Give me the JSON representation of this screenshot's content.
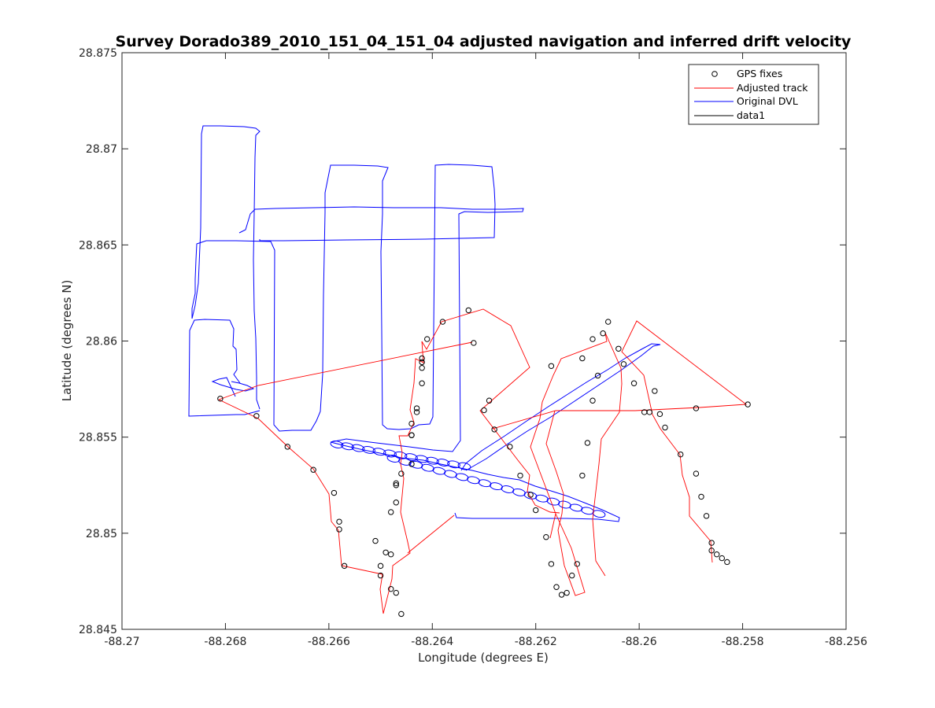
{
  "chart_data": {
    "type": "line",
    "title": "Survey Dorado389_2010_151_04_151_04 adjusted navigation and inferred drift velocity",
    "xlabel": "Longitude (degrees E)",
    "ylabel": "Latitude (degrees N)",
    "xlim": [
      -88.27,
      -88.256
    ],
    "ylim": [
      28.845,
      28.875
    ],
    "xticks": [
      -88.27,
      -88.268,
      -88.266,
      -88.264,
      -88.262,
      -88.26,
      -88.258,
      -88.256
    ],
    "xtick_labels": [
      "-88.27",
      "-88.268",
      "-88.266",
      "-88.264",
      "-88.262",
      "-88.26",
      "-88.258",
      "-88.256"
    ],
    "yticks": [
      28.845,
      28.85,
      28.855,
      28.86,
      28.865,
      28.87,
      28.875
    ],
    "ytick_labels": [
      "28.845",
      "28.85",
      "28.855",
      "28.86",
      "28.865",
      "28.87",
      "28.875"
    ],
    "grid": false,
    "legend_position": "top-right",
    "colors": {
      "gps": "#000000",
      "adjusted": "#ff0000",
      "original": "#0000ff",
      "data1": "#000000"
    },
    "series": [
      {
        "name": "GPS fixes",
        "style": "markers",
        "x": [
          -88.2681,
          -88.2674,
          -88.2668,
          -88.2663,
          -88.2659,
          -88.2658,
          -88.2658,
          -88.2657,
          -88.265,
          -88.2648,
          -88.2646,
          -88.2647,
          -88.265,
          -88.2651,
          -88.2649,
          -88.2648,
          -88.2648,
          -88.2647,
          -88.2647,
          -88.2647,
          -88.2646,
          -88.2644,
          -88.2644,
          -88.2644,
          -88.2644,
          -88.2643,
          -88.2643,
          -88.2642,
          -88.2642,
          -88.2642,
          -88.2642,
          -88.2641,
          -88.2638,
          -88.2633,
          -88.2632,
          -88.263,
          -88.2629,
          -88.2628,
          -88.2625,
          -88.2623,
          -88.2621,
          -88.262,
          -88.2618,
          -88.2617,
          -88.2616,
          -88.2615,
          -88.2614,
          -88.2613,
          -88.2612,
          -88.2611,
          -88.261,
          -88.2609,
          -88.2608,
          -88.2617,
          -88.2611,
          -88.2609,
          -88.2607,
          -88.2606,
          -88.2604,
          -88.2603,
          -88.2601,
          -88.2599,
          -88.2598,
          -88.2597,
          -88.2596,
          -88.2595,
          -88.2592,
          -88.2589,
          -88.2588,
          -88.2587,
          -88.2586,
          -88.2579,
          -88.2589,
          -88.2586,
          -88.2585,
          -88.2584,
          -88.2583
        ],
        "y": [
          28.857,
          28.8561,
          28.8545,
          28.8533,
          28.8521,
          28.8506,
          28.8502,
          28.8483,
          28.8478,
          28.8471,
          28.8458,
          28.8469,
          28.8483,
          28.8496,
          28.849,
          28.8489,
          28.8511,
          28.8516,
          28.8525,
          28.8526,
          28.8531,
          28.8536,
          28.8551,
          28.8551,
          28.8557,
          28.8565,
          28.8563,
          28.8578,
          28.8586,
          28.8589,
          28.8591,
          28.8601,
          28.861,
          28.8616,
          28.8599,
          28.8564,
          28.8569,
          28.8554,
          28.8545,
          28.853,
          28.852,
          28.8512,
          28.8498,
          28.8484,
          28.8472,
          28.8468,
          28.8469,
          28.8478,
          28.8484,
          28.853,
          28.8547,
          28.8569,
          28.8582,
          28.8587,
          28.8591,
          28.8601,
          28.8604,
          28.861,
          28.8596,
          28.8588,
          28.8578,
          28.8563,
          28.8563,
          28.8574,
          28.8562,
          28.8555,
          28.8541,
          28.8531,
          28.8519,
          28.8509,
          28.8495,
          28.8567,
          28.8565,
          28.8491,
          28.8489,
          28.8487,
          28.8485
        ]
      },
      {
        "name": "Adjusted track",
        "style": "line"
      },
      {
        "name": "Original DVL",
        "style": "line"
      },
      {
        "name": "data1",
        "style": "line"
      }
    ]
  }
}
